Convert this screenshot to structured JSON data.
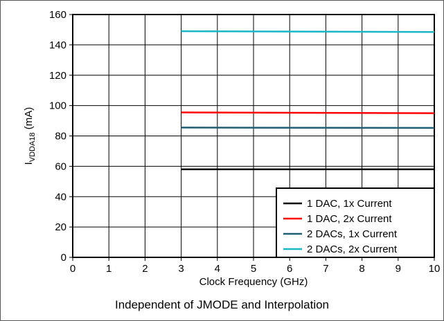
{
  "chart_data": {
    "type": "line",
    "xlabel": "Clock Frequency (GHz)",
    "ylabel_main": "I",
    "ylabel_sub": "VDDA18",
    "ylabel_unit": " (mA)",
    "xlim": [
      0,
      10
    ],
    "ylim": [
      0,
      160
    ],
    "xticks": [
      0,
      1,
      2,
      3,
      4,
      5,
      6,
      7,
      8,
      9,
      10
    ],
    "yticks": [
      0,
      20,
      40,
      60,
      80,
      100,
      120,
      140,
      160
    ],
    "grid": true,
    "legend_position": "bottom-right",
    "series": [
      {
        "name": "1 DAC, 1x Current",
        "color": "#000000",
        "x": [
          3,
          10
        ],
        "y": [
          58,
          58
        ]
      },
      {
        "name": "1 DAC, 2x Current",
        "color": "#ff0000",
        "x": [
          3,
          10
        ],
        "y": [
          95.5,
          95
        ]
      },
      {
        "name": "2 DACs, 1x Current",
        "color": "#1f5f73",
        "x": [
          3,
          10
        ],
        "y": [
          85.5,
          85.3
        ]
      },
      {
        "name": "2 DACs, 2x Current",
        "color": "#18b8c8",
        "x": [
          3,
          10
        ],
        "y": [
          149,
          148.5
        ]
      }
    ]
  },
  "caption": "Independent of JMODE and Interpolation"
}
